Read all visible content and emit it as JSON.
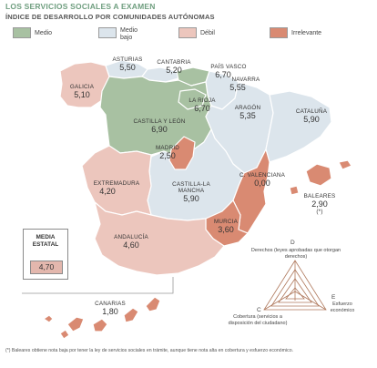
{
  "header": {
    "title": "LOS SERVICIOS SOCIALES A EXAMEN",
    "subtitle": "ÍNDICE DE DESARROLLO POR COMUNIDADES AUTÓNOMAS"
  },
  "legend": [
    {
      "label": "Medio",
      "color": "#a8c1a2"
    },
    {
      "label": "Medio\nbajo",
      "color": "#dce5ec"
    },
    {
      "label": "Débil",
      "color": "#ecc6bd"
    },
    {
      "label": "Irrelevante",
      "color": "#d98a72"
    }
  ],
  "regions": [
    {
      "name": "GALICIA",
      "value": "5,10",
      "level": "Débil"
    },
    {
      "name": "ASTURIAS",
      "value": "5,50",
      "level": "Medio bajo"
    },
    {
      "name": "CANTABRIA",
      "value": "5,20",
      "level": "Medio bajo"
    },
    {
      "name": "PAÍS VASCO",
      "value": "6,70",
      "level": "Medio"
    },
    {
      "name": "NAVARRA",
      "value": "5,55",
      "level": "Medio bajo"
    },
    {
      "name": "LA RIOJA",
      "value": "6,70",
      "level": "Medio"
    },
    {
      "name": "ARAGÓN",
      "value": "5,35",
      "level": "Medio bajo"
    },
    {
      "name": "CATALUÑA",
      "value": "5,90",
      "level": "Medio bajo"
    },
    {
      "name": "CASTILLA Y LEÓN",
      "value": "6,90",
      "level": "Medio"
    },
    {
      "name": "MADRID",
      "value": "2,50",
      "level": "Irrelevante"
    },
    {
      "name": "EXTREMADURA",
      "value": "4,20",
      "level": "Débil"
    },
    {
      "name": "CASTILLA-LA MANCHA",
      "value": "5,90",
      "level": "Medio bajo"
    },
    {
      "name": "C. VALENCIANA",
      "value": "0,00",
      "level": "Irrelevante"
    },
    {
      "name": "BALEARES",
      "value": "2,90",
      "level": "Irrelevante",
      "note": "(*)"
    },
    {
      "name": "MURCIA",
      "value": "3,60",
      "level": "Irrelevante"
    },
    {
      "name": "ANDALUCÍA",
      "value": "4,60",
      "level": "Débil"
    },
    {
      "name": "CANARIAS",
      "value": "1,80",
      "level": "Irrelevante"
    }
  ],
  "average": {
    "label": "MEDIA ESTATAL",
    "value": "4,70"
  },
  "triangle": {
    "d_letter": "D",
    "d_text": "Derechos (leyes aprobadas que otorgan derechos)",
    "c_letter": "C",
    "c_text": "Cobertura (servicios a disposición del ciudadano)",
    "e_letter": "E",
    "e_text": "Esfuerzo económico"
  },
  "footnote": "(*) Baleares obtiene nota baja por tener la ley de servicios sociales en trámite, aunque tiene nota alta en cobertura y esfuerzo económico."
}
